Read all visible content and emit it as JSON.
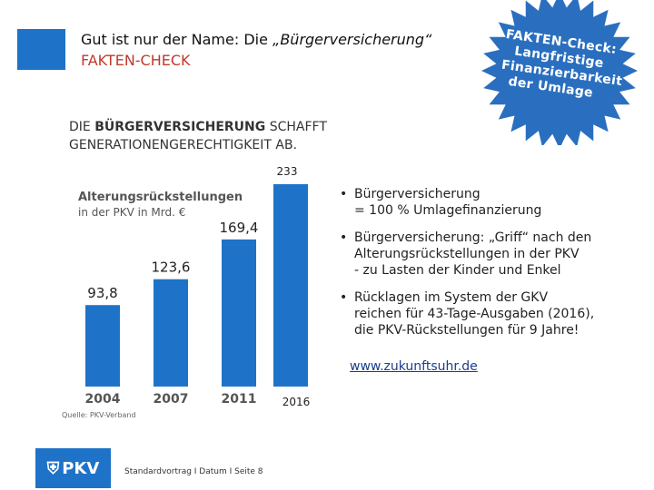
{
  "header": {
    "title_prefix": "Gut ist nur der Name: Die ",
    "title_emphasis": "„Bürgerversicherung“",
    "subtitle": "FAKTEN-CHECK",
    "accent": "#1e73c8",
    "subtitle_color": "#c0392b"
  },
  "badge": {
    "lines": [
      "FAKTEN-Check:",
      "Langfristige",
      "Finanzierbarkeit",
      "der Umlage"
    ],
    "color": "#2a6fbf"
  },
  "slide": {
    "heading_line1_start": "DIE ",
    "heading_line1_bold": "BÜRGERVERSICHERUNG",
    "heading_line1_end": " SCHAFFT",
    "heading_line2": "GENERATIONENGERECHTIGKEIT AB."
  },
  "chart_data": {
    "type": "bar",
    "title": "Alterungsrückstellungen",
    "subtitle": "in der PKV in Mrd. €",
    "categories": [
      "2004",
      "2007",
      "2011",
      "2016"
    ],
    "values": [
      93.8,
      123.6,
      169.4,
      233
    ],
    "value_labels": [
      "93,8",
      "123,6",
      "169,4",
      "233"
    ],
    "source": "Quelle: PKV-Verband",
    "color": "#1e73c8",
    "ylim": [
      0,
      233
    ]
  },
  "bullets": [
    {
      "lines": [
        "Bürgerversicherung",
        "= 100 % Umlagefinanzierung"
      ]
    },
    {
      "lines": [
        "Bürgerversicherung: „Griff“ nach den",
        "Alterungsrückstellungen in der PKV",
        "- zu Lasten der Kinder und Enkel"
      ]
    },
    {
      "lines": [
        "Rücklagen im System der GKV",
        "reichen für 43-Tage-Ausgaben (2016),",
        "die PKV-Rückstellungen für 9 Jahre!"
      ]
    }
  ],
  "link": "www.zukunftsuhr.de",
  "footer": {
    "logo_text": "PKV",
    "text": "Standardvortrag I Datum   I Seite 8"
  },
  "icons": {
    "bullet": "bullet-icon",
    "logo": "pkv-shield-icon"
  }
}
